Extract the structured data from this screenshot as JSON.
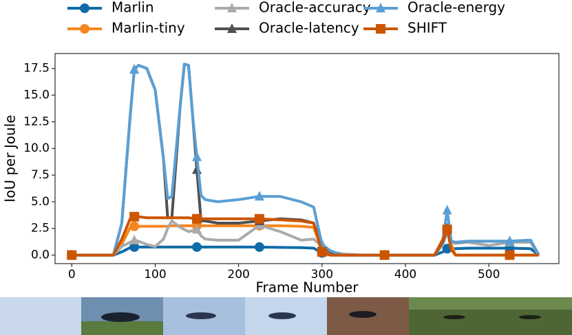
{
  "chart_data": {
    "type": "line",
    "x_label": "Frame Number",
    "y_label": "IoU per Joule",
    "x": [
      0,
      50,
      60,
      70,
      75,
      80,
      90,
      100,
      110,
      115,
      120,
      130,
      135,
      140,
      145,
      150,
      155,
      160,
      175,
      200,
      225,
      250,
      275,
      290,
      300,
      310,
      325,
      350,
      375,
      400,
      435,
      445,
      450,
      455,
      460,
      475,
      500,
      525,
      550,
      560
    ],
    "markevery": 75,
    "series": [
      {
        "name": "Marlin",
        "color": "#0e6ba8",
        "marker": "circle",
        "values": [
          0,
          0,
          0.3,
          0.7,
          0.75,
          0.75,
          0.75,
          0.75,
          0.75,
          0.75,
          0.75,
          0.75,
          0.75,
          0.75,
          0.75,
          0.75,
          0.75,
          0.75,
          0.75,
          0.75,
          0.75,
          0.72,
          0.7,
          0.65,
          0.2,
          0,
          0,
          0,
          0,
          0,
          0,
          0.3,
          0.6,
          0.6,
          0.6,
          0.65,
          0.65,
          0.65,
          0.6,
          0
        ]
      },
      {
        "name": "Marlin-tiny",
        "color": "#f5861f",
        "marker": "circle",
        "values": [
          0,
          0,
          1,
          2.6,
          2.7,
          2.7,
          2.7,
          2.7,
          2.7,
          2.7,
          2.75,
          2.75,
          2.75,
          2.75,
          2.75,
          2.75,
          2.75,
          2.75,
          2.75,
          2.75,
          2.75,
          2.75,
          2.7,
          2.6,
          0.5,
          0,
          0,
          0,
          0,
          0,
          0,
          1.5,
          2.5,
          1,
          0,
          0,
          0,
          0,
          0,
          0
        ]
      },
      {
        "name": "Oracle-accuracy",
        "color": "#aaaaaa",
        "marker": "triangle",
        "values": [
          0,
          0,
          0.8,
          1.2,
          1.4,
          1.3,
          1.0,
          0.8,
          1.5,
          2.5,
          3.2,
          2.6,
          2.4,
          2.2,
          2.3,
          2.4,
          1.8,
          1.5,
          1.4,
          1.4,
          2.8,
          2.2,
          1.4,
          1.5,
          0.8,
          0.3,
          0.1,
          0,
          0,
          0,
          0,
          1,
          2.2,
          1.2,
          1.1,
          1.2,
          0.9,
          1.2,
          1.2,
          0
        ]
      },
      {
        "name": "Oracle-latency",
        "color": "#505050",
        "marker": "triangle",
        "values": [
          0,
          0,
          3,
          13,
          17.4,
          17.8,
          17.5,
          15.5,
          9,
          3.5,
          3.5,
          14,
          17.9,
          17.8,
          13,
          8,
          3.2,
          3.2,
          3,
          3,
          3.2,
          3.4,
          3.3,
          3,
          0.8,
          0.3,
          0,
          0,
          0,
          0,
          0,
          1.3,
          2.5,
          1.3,
          1.2,
          1.3,
          1.3,
          1.3,
          1.4,
          0
        ]
      },
      {
        "name": "Oracle-energy",
        "color": "#5a9fd4",
        "marker": "triangle",
        "values": [
          0,
          0,
          3,
          13,
          17.4,
          17.8,
          17.5,
          15.5,
          9,
          5.3,
          5.5,
          14,
          17.9,
          17.8,
          13,
          9.2,
          5.6,
          5.2,
          5,
          5.2,
          5.5,
          5.5,
          5,
          4.5,
          1,
          0.4,
          0,
          0,
          0,
          0,
          0,
          1.5,
          4.2,
          1.3,
          1.2,
          1.3,
          1.3,
          1.3,
          1.4,
          0
        ]
      },
      {
        "name": "SHIFT",
        "color": "#cc5500",
        "marker": "square",
        "values": [
          0,
          0,
          1.5,
          3.4,
          3.6,
          3.6,
          3.5,
          3.5,
          3.5,
          3.5,
          3.5,
          3.5,
          3.5,
          3.5,
          3.45,
          3.4,
          3.4,
          3.4,
          3.4,
          3.4,
          3.4,
          3.3,
          3.2,
          3.0,
          0.3,
          0,
          0,
          0,
          0,
          0,
          0,
          1.5,
          2.4,
          0.5,
          0,
          0,
          0,
          0,
          0,
          0
        ]
      }
    ],
    "xlim": [
      -20,
      584
    ],
    "ylim": [
      -0.8,
      18.9
    ],
    "xticks": [
      0,
      100,
      200,
      300,
      400,
      500
    ],
    "yticks": [
      {
        "value": 0,
        "label": "0.0"
      },
      {
        "value": 2.5,
        "label": "2.5"
      },
      {
        "value": 5,
        "label": "5.0"
      },
      {
        "value": 7.5,
        "label": "7.5"
      },
      {
        "value": 10,
        "label": "10.0"
      },
      {
        "value": 12.5,
        "label": "12.5"
      },
      {
        "value": 15,
        "label": "15.0"
      },
      {
        "value": 17.5,
        "label": "17.5"
      }
    ],
    "grid": false,
    "legend": "top"
  }
}
